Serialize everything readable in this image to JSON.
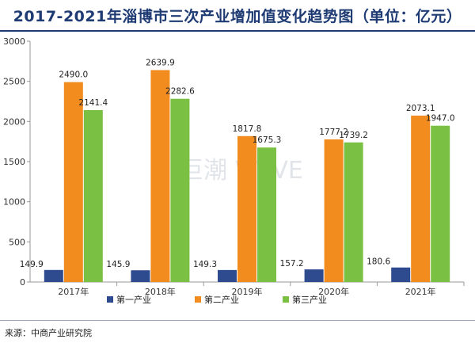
{
  "title": "2017-2021年淄博市三次产业增加值变化趋势图（单位：亿元）",
  "watermark": "巨潮 WAVE",
  "source": "来源：中商产业研究院",
  "chart_data": {
    "type": "bar",
    "title": "2017-2021年淄博市三次产业增加值变化趋势图（单位：亿元）",
    "categories": [
      "2017年",
      "2018年",
      "2019年",
      "2020年",
      "2021年"
    ],
    "yticks": [
      "0",
      "500",
      "1000",
      "1500",
      "2000",
      "2500",
      "3000"
    ],
    "ylim": [
      0,
      3000
    ],
    "series": [
      {
        "name": "第一产业",
        "color": "#2f4b8f",
        "values": [
          149.9,
          145.9,
          149.3,
          157.2,
          180.6
        ],
        "labels": [
          "149.9",
          "145.9",
          "149.3",
          "157.2",
          "180.6"
        ]
      },
      {
        "name": "第二产业",
        "color": "#f28c1e",
        "values": [
          2490.0,
          2639.9,
          1817.8,
          1777.2,
          2073.1
        ],
        "labels": [
          "2490.0",
          "2639.9",
          "1817.8",
          "1777.2",
          "2073.1"
        ]
      },
      {
        "name": "第三产业",
        "color": "#7ac143",
        "values": [
          2141.4,
          2282.6,
          1675.3,
          1739.2,
          1947.0
        ],
        "labels": [
          "2141.4",
          "2282.6",
          "1675.3",
          "1739.2",
          "1947.0"
        ]
      }
    ],
    "legend": "bottom",
    "grid": false
  }
}
